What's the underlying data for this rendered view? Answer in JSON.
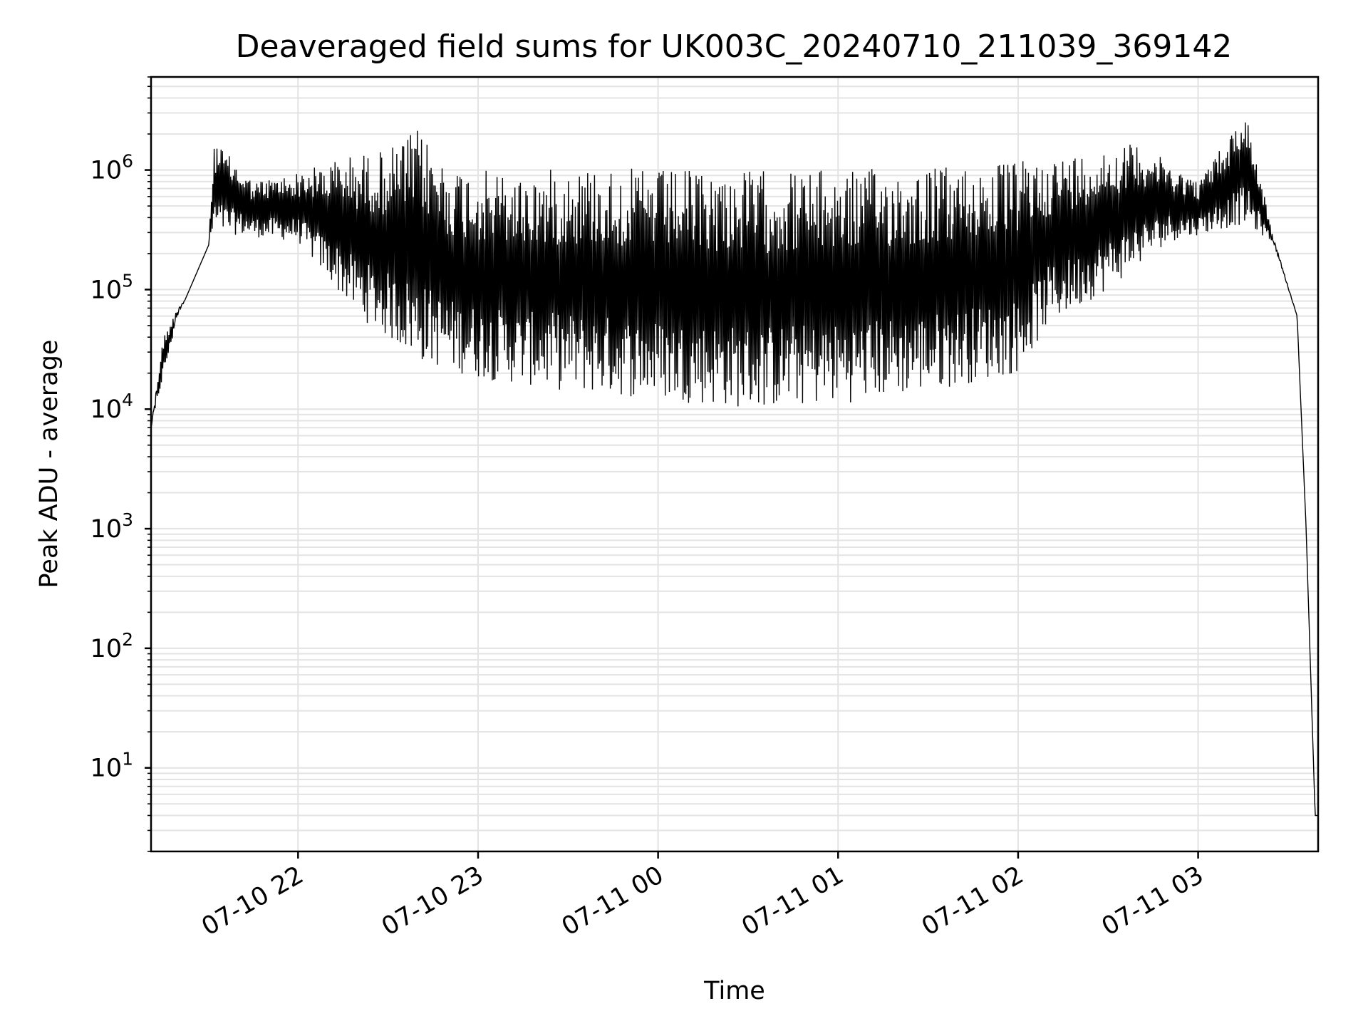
{
  "chart_data": {
    "type": "line",
    "title": "Deaveraged field sums for UK003C_20240710_211039_369142",
    "xlabel": "Time",
    "ylabel": "Peak ADU - average",
    "yscale": "log",
    "xlim": [
      "2024-07-10 21:11",
      "2024-07-11 03:40"
    ],
    "ylim": [
      2,
      6000000
    ],
    "grid": "both major and minor, light grey",
    "line_color": "#000000",
    "x_ticks": [
      {
        "label": "07-10 22",
        "t": "2024-07-10 22:00"
      },
      {
        "label": "07-10 23",
        "t": "2024-07-10 23:00"
      },
      {
        "label": "07-11 00",
        "t": "2024-07-11 00:00"
      },
      {
        "label": "07-11 01",
        "t": "2024-07-11 01:00"
      },
      {
        "label": "07-11 02",
        "t": "2024-07-11 02:00"
      },
      {
        "label": "07-11 03",
        "t": "2024-07-11 03:00"
      }
    ],
    "y_ticks": [
      {
        "base": "10",
        "exp": "1",
        "value": 10
      },
      {
        "base": "10",
        "exp": "2",
        "value": 100
      },
      {
        "base": "10",
        "exp": "3",
        "value": 1000
      },
      {
        "base": "10",
        "exp": "4",
        "value": 10000
      },
      {
        "base": "10",
        "exp": "5",
        "value": 100000
      },
      {
        "base": "10",
        "exp": "6",
        "value": 1000000
      }
    ],
    "series": [
      {
        "style": "dense oscillating line",
        "envelope_upper": [
          {
            "t": "2024-07-10 21:11",
            "v": 7000
          },
          {
            "t": "2024-07-10 21:15",
            "v": 40000
          },
          {
            "t": "2024-07-10 21:20",
            "v": 70000
          },
          {
            "t": "2024-07-10 21:25",
            "v": 100000
          },
          {
            "t": "2024-07-10 21:30",
            "v": 180000
          },
          {
            "t": "2024-07-10 21:32",
            "v": 1800000
          },
          {
            "t": "2024-07-10 21:45",
            "v": 800000
          },
          {
            "t": "2024-07-10 22:00",
            "v": 950000
          },
          {
            "t": "2024-07-10 22:15",
            "v": 1300000
          },
          {
            "t": "2024-07-10 22:30",
            "v": 1500000
          },
          {
            "t": "2024-07-10 22:40",
            "v": 2200000
          },
          {
            "t": "2024-07-10 22:50",
            "v": 1100000
          },
          {
            "t": "2024-07-10 23:15",
            "v": 900000
          },
          {
            "t": "2024-07-10 23:30",
            "v": 1100000
          },
          {
            "t": "2024-07-11 00:00",
            "v": 1000000
          },
          {
            "t": "2024-07-11 01:00",
            "v": 1000000
          },
          {
            "t": "2024-07-11 01:45",
            "v": 1100000
          },
          {
            "t": "2024-07-11 02:15",
            "v": 1300000
          },
          {
            "t": "2024-07-11 02:40",
            "v": 1700000
          },
          {
            "t": "2024-07-11 03:00",
            "v": 800000
          },
          {
            "t": "2024-07-11 03:16",
            "v": 3200000
          },
          {
            "t": "2024-07-11 03:25",
            "v": 280000
          },
          {
            "t": "2024-07-11 03:33",
            "v": 60000
          },
          {
            "t": "2024-07-11 03:36",
            "v": 1000
          },
          {
            "t": "2024-07-11 03:39",
            "v": 4
          }
        ],
        "envelope_lower": [
          {
            "t": "2024-07-10 21:11",
            "v": 7000
          },
          {
            "t": "2024-07-10 21:20",
            "v": 60000
          },
          {
            "t": "2024-07-10 21:32",
            "v": 300000
          },
          {
            "t": "2024-07-10 22:00",
            "v": 250000
          },
          {
            "t": "2024-07-10 22:20",
            "v": 60000
          },
          {
            "t": "2024-07-10 22:40",
            "v": 25000
          },
          {
            "t": "2024-07-10 23:00",
            "v": 18000
          },
          {
            "t": "2024-07-10 23:30",
            "v": 14000
          },
          {
            "t": "2024-07-11 00:00",
            "v": 12000
          },
          {
            "t": "2024-07-11 00:30",
            "v": 10000
          },
          {
            "t": "2024-07-11 01:00",
            "v": 11000
          },
          {
            "t": "2024-07-11 01:30",
            "v": 14000
          },
          {
            "t": "2024-07-11 02:00",
            "v": 20000
          },
          {
            "t": "2024-07-11 02:10",
            "v": 50000
          },
          {
            "t": "2024-07-11 02:30",
            "v": 100000
          },
          {
            "t": "2024-07-11 02:50",
            "v": 250000
          },
          {
            "t": "2024-07-11 03:15",
            "v": 350000
          },
          {
            "t": "2024-07-11 03:25",
            "v": 250000
          },
          {
            "t": "2024-07-11 03:33",
            "v": 60000
          },
          {
            "t": "2024-07-11 03:36",
            "v": 1000
          },
          {
            "t": "2024-07-11 03:39",
            "v": 4
          }
        ]
      }
    ]
  }
}
